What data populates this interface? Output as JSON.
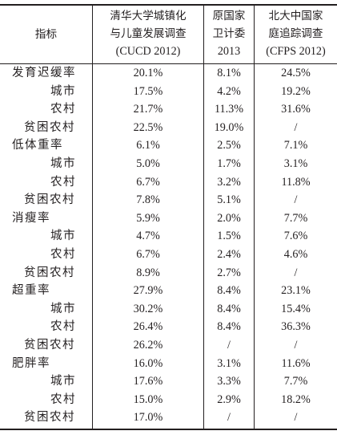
{
  "header": {
    "indicator": "指标",
    "col1": [
      "清华大学城镇化",
      "与儿童发展调查",
      "(CUCD 2012)"
    ],
    "col2": [
      "原国家",
      "卫计委",
      "2013"
    ],
    "col3": [
      "北大中国家",
      "庭追踪调查",
      "(CFPS 2012)"
    ]
  },
  "rows": [
    {
      "label": "发育迟缓率",
      "v1": "20.1%",
      "v2": "8.1%",
      "v3": "24.5%"
    },
    {
      "label": "城市",
      "v1": "17.5%",
      "v2": "4.2%",
      "v3": "19.2%"
    },
    {
      "label": "农村",
      "v1": "21.7%",
      "v2": "11.3%",
      "v3": "31.6%"
    },
    {
      "label": "贫困农村",
      "v1": "22.5%",
      "v2": "19.0%",
      "v3": "/"
    },
    {
      "label": "低体重率",
      "v1": "6.1%",
      "v2": "2.5%",
      "v3": "7.1%"
    },
    {
      "label": "城市",
      "v1": "5.0%",
      "v2": "1.7%",
      "v3": "3.1%"
    },
    {
      "label": "农村",
      "v1": "6.7%",
      "v2": "3.2%",
      "v3": "11.8%"
    },
    {
      "label": "贫困农村",
      "v1": "7.8%",
      "v2": "5.1%",
      "v3": "/"
    },
    {
      "label": "消瘦率",
      "v1": "5.9%",
      "v2": "2.0%",
      "v3": "7.7%"
    },
    {
      "label": "城市",
      "v1": "4.7%",
      "v2": "1.5%",
      "v3": "7.6%"
    },
    {
      "label": "农村",
      "v1": "6.7%",
      "v2": "2.4%",
      "v3": "4.6%"
    },
    {
      "label": "贫困农村",
      "v1": "8.9%",
      "v2": "2.7%",
      "v3": "/"
    },
    {
      "label": "超重率",
      "v1": "27.9%",
      "v2": "8.4%",
      "v3": "23.1%"
    },
    {
      "label": "城市",
      "v1": "30.2%",
      "v2": "8.4%",
      "v3": "15.4%"
    },
    {
      "label": "农村",
      "v1": "26.4%",
      "v2": "8.4%",
      "v3": "36.3%"
    },
    {
      "label": "贫困农村",
      "v1": "26.2%",
      "v2": "/",
      "v3": "/"
    },
    {
      "label": "肥胖率",
      "v1": "16.0%",
      "v2": "3.1%",
      "v3": "11.6%"
    },
    {
      "label": "城市",
      "v1": "17.6%",
      "v2": "3.3%",
      "v3": "7.7%"
    },
    {
      "label": "农村",
      "v1": "15.0%",
      "v2": "2.9%",
      "v3": "18.2%"
    },
    {
      "label": "贫困农村",
      "v1": "17.0%",
      "v2": "/",
      "v3": "/"
    }
  ]
}
